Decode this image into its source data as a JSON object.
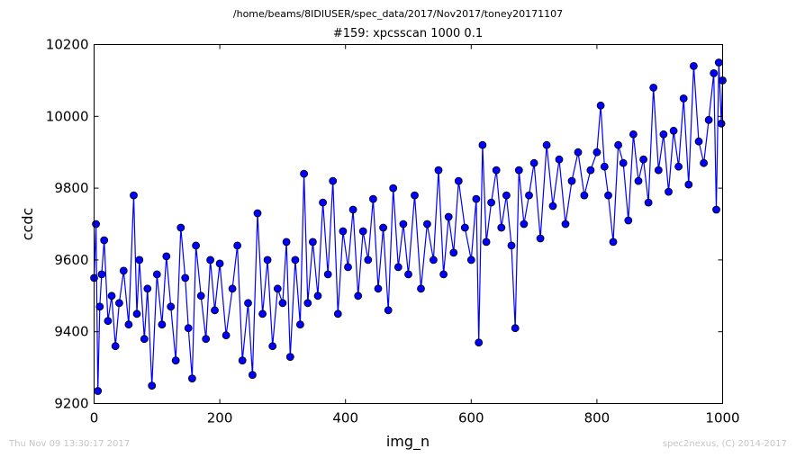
{
  "figure": {
    "suptitle": "/home/beams/8IDIUSER/spec_data/2017/Nov2017/toney20171107",
    "footer_left": "Thu Nov 09 13:30:17 2017",
    "footer_right": "spec2nexus, (C) 2014-2017"
  },
  "colors": {
    "series": "#0000ff",
    "marker_edge": "#000000",
    "axes": "#000000",
    "background": "#ffffff",
    "footer_text": "#c6c6c6"
  },
  "chart_data": {
    "type": "line",
    "markers": "circle",
    "title": "#159: xpcsscan 1000 0.1",
    "xlabel": "img_n",
    "ylabel": "ccdc",
    "xlim": [
      0,
      1000
    ],
    "ylim": [
      9200,
      10200
    ],
    "xticks": [
      0,
      200,
      400,
      600,
      800,
      1000
    ],
    "yticks": [
      9200,
      9400,
      9600,
      9800,
      10000,
      10200
    ],
    "grid": false,
    "legend": "none",
    "series": [
      {
        "x": [
          0,
          3,
          6,
          9,
          12,
          16,
          22,
          28,
          34,
          40,
          47,
          55,
          63,
          68,
          72,
          80,
          85,
          92,
          100,
          108,
          115,
          122,
          130,
          138,
          145,
          150,
          156,
          162,
          170,
          178,
          185,
          192,
          200,
          210,
          220,
          228,
          236,
          245,
          252,
          260,
          268,
          276,
          284,
          292,
          300,
          306,
          312,
          320,
          328,
          334,
          340,
          348,
          356,
          364,
          372,
          380,
          388,
          396,
          404,
          412,
          420,
          428,
          436,
          444,
          452,
          460,
          468,
          476,
          484,
          492,
          500,
          510,
          520,
          530,
          540,
          548,
          556,
          564,
          572,
          580,
          590,
          600,
          608,
          612,
          618,
          624,
          632,
          640,
          648,
          656,
          664,
          670,
          676,
          684,
          692,
          700,
          710,
          720,
          730,
          740,
          750,
          760,
          770,
          780,
          790,
          800,
          806,
          812,
          818,
          826,
          834,
          842,
          850,
          858,
          866,
          874,
          882,
          890,
          898,
          906,
          914,
          922,
          930,
          938,
          946,
          954,
          962,
          970,
          978,
          986,
          990,
          994,
          998,
          1000
        ],
        "y": [
          9550,
          9700,
          9235,
          9470,
          9560,
          9655,
          9430,
          9500,
          9360,
          9480,
          9570,
          9420,
          9780,
          9450,
          9600,
          9380,
          9520,
          9250,
          9560,
          9420,
          9610,
          9470,
          9320,
          9690,
          9550,
          9410,
          9270,
          9640,
          9500,
          9380,
          9600,
          9460,
          9590,
          9390,
          9520,
          9640,
          9320,
          9480,
          9280,
          9730,
          9450,
          9600,
          9360,
          9520,
          9480,
          9650,
          9330,
          9600,
          9420,
          9840,
          9480,
          9650,
          9500,
          9760,
          9560,
          9820,
          9450,
          9680,
          9580,
          9740,
          9500,
          9680,
          9600,
          9770,
          9520,
          9690,
          9460,
          9800,
          9580,
          9700,
          9560,
          9780,
          9520,
          9700,
          9600,
          9850,
          9560,
          9720,
          9620,
          9820,
          9690,
          9600,
          9770,
          9370,
          9920,
          9650,
          9760,
          9850,
          9690,
          9780,
          9640,
          9410,
          9850,
          9700,
          9780,
          9870,
          9660,
          9920,
          9750,
          9880,
          9700,
          9820,
          9900,
          9780,
          9850,
          9900,
          10030,
          9860,
          9780,
          9650,
          9920,
          9870,
          9710,
          9950,
          9820,
          9880,
          9760,
          10080,
          9850,
          9950,
          9790,
          9960,
          9860,
          10050,
          9810,
          10140,
          9930,
          9870,
          9990,
          10120,
          9740,
          10150,
          9980,
          10100
        ]
      }
    ]
  }
}
